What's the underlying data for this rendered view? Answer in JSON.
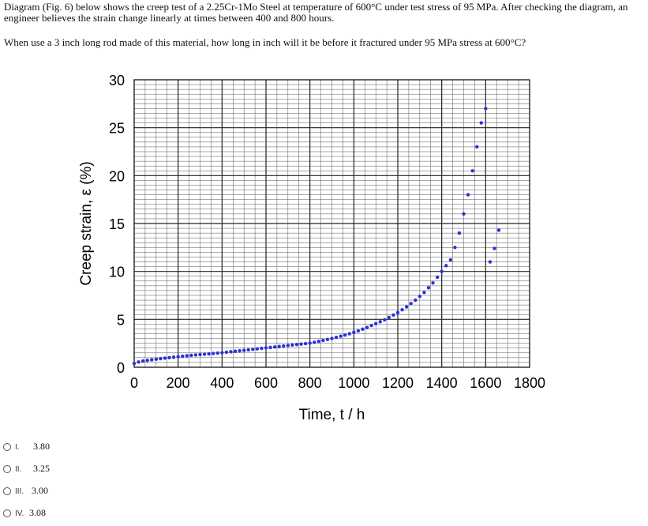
{
  "question": {
    "intro": "Diagram (Fig. 6)  below shows the creep test of a 2.25Cr-1Mo Steel at temperature of 600°C under test stress of 95 MPa. After checking the diagram, an engineer believes the strain change linearly at times between 400 and 800 hours.",
    "prompt": "When use a 3 inch long rod made of this material, how long in inch will it be before it fractured under 95 MPa stress at 600°C?"
  },
  "options": [
    {
      "numeral": "I.",
      "value": "3.80"
    },
    {
      "numeral": "II.",
      "value": "3.25"
    },
    {
      "numeral": "III.",
      "value": "3.00"
    },
    {
      "numeral": "IV.",
      "value": "3.08"
    }
  ],
  "colors": {
    "series": "#2a32d8",
    "grid": "#555555",
    "axis": "#000000"
  },
  "chart_data": {
    "type": "scatter",
    "title": "",
    "xlabel": "Time, t / h",
    "ylabel": "Creep strain, ε (%)",
    "xlim": [
      0,
      1800
    ],
    "ylim": [
      0,
      30
    ],
    "x_ticks": [
      "0",
      "200",
      "400",
      "600",
      "800",
      "1000",
      "1200",
      "1400",
      "1600",
      "1800"
    ],
    "y_ticks": [
      "0",
      "5",
      "10",
      "15",
      "20",
      "25",
      "30"
    ],
    "grid": true,
    "series": [
      {
        "name": "",
        "x": [
          0,
          20,
          40,
          60,
          80,
          100,
          120,
          140,
          160,
          180,
          200,
          220,
          240,
          260,
          280,
          300,
          320,
          340,
          360,
          380,
          400,
          420,
          440,
          460,
          480,
          500,
          520,
          540,
          560,
          580,
          600,
          620,
          640,
          660,
          680,
          700,
          720,
          740,
          760,
          780,
          800,
          820,
          840,
          860,
          880,
          900,
          920,
          940,
          960,
          980,
          1000,
          1020,
          1040,
          1060,
          1080,
          1100,
          1120,
          1140,
          1160,
          1180,
          1200,
          1220,
          1240,
          1260,
          1280,
          1300,
          1320,
          1340,
          1360,
          1380,
          1400,
          1420,
          1440,
          1460,
          1480,
          1500,
          1520,
          1540,
          1560,
          1580,
          1600,
          1620,
          1640,
          1660
        ],
        "y": [
          0.4,
          0.55,
          0.65,
          0.72,
          0.78,
          0.84,
          0.9,
          0.95,
          1.0,
          1.05,
          1.1,
          1.15,
          1.2,
          1.24,
          1.28,
          1.32,
          1.36,
          1.4,
          1.44,
          1.48,
          1.52,
          1.57,
          1.62,
          1.67,
          1.72,
          1.77,
          1.82,
          1.87,
          1.92,
          1.97,
          2.02,
          2.07,
          2.12,
          2.17,
          2.22,
          2.27,
          2.32,
          2.37,
          2.42,
          2.47,
          2.52,
          2.6,
          2.7,
          2.8,
          2.9,
          3.0,
          3.12,
          3.24,
          3.36,
          3.5,
          3.65,
          3.8,
          3.97,
          4.15,
          4.35,
          4.55,
          4.75,
          4.95,
          5.2,
          5.45,
          5.7,
          6.0,
          6.3,
          6.65,
          7.0,
          7.4,
          7.8,
          8.3,
          8.8,
          9.4,
          10.0,
          10.6,
          11.2,
          12.5,
          14.0,
          16.0,
          18.0,
          20.5,
          23.0,
          25.5,
          27.0,
          11.0,
          12.4,
          14.3
        ]
      }
    ]
  }
}
